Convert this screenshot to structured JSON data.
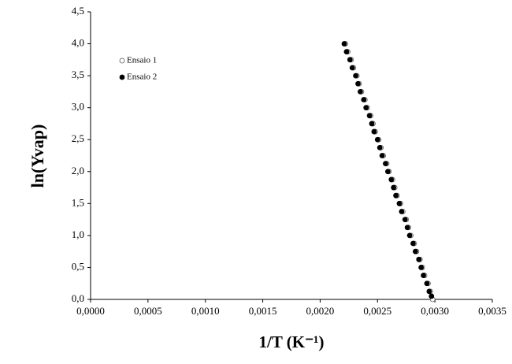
{
  "chart_data": {
    "type": "scatter",
    "xlabel": "1/T (K⁻¹)",
    "ylabel": "ln(Yvap)",
    "xlim": [
      0,
      0.0035
    ],
    "xticks": [
      {
        "value": 0,
        "label": "0,0000"
      },
      {
        "value": 0.0005,
        "label": "0,0005"
      },
      {
        "value": 0.001,
        "label": "0,0010"
      },
      {
        "value": 0.0015,
        "label": "0,0015"
      },
      {
        "value": 0.002,
        "label": "0,0020"
      },
      {
        "value": 0.0025,
        "label": "0,0025"
      },
      {
        "value": 0.003,
        "label": "0,0030"
      },
      {
        "value": 0.0035,
        "label": "0,0035"
      }
    ],
    "ylim": [
      0,
      4.5
    ],
    "yticks": [
      {
        "value": 0,
        "label": "0,0"
      },
      {
        "value": 0.5,
        "label": "0,5"
      },
      {
        "value": 1,
        "label": "1,0"
      },
      {
        "value": 1.5,
        "label": "1,5"
      },
      {
        "value": 2,
        "label": "2,0"
      },
      {
        "value": 2.5,
        "label": "2,5"
      },
      {
        "value": 3,
        "label": "3,0"
      },
      {
        "value": 3.5,
        "label": "3,5"
      },
      {
        "value": 4,
        "label": "4,0"
      },
      {
        "value": 4.5,
        "label": "4,5"
      }
    ],
    "grid": false,
    "legend": "upper left",
    "series": [
      {
        "name": "Ensaio 1",
        "color": "#ffffff",
        "edgecolor": "#555555",
        "x": [
          0.00222,
          0.00224,
          0.00227,
          0.00229,
          0.00232,
          0.00234,
          0.00236,
          0.00239,
          0.00241,
          0.00244,
          0.00246,
          0.00248,
          0.00251,
          0.00253,
          0.00255,
          0.00258,
          0.0026,
          0.00263,
          0.00265,
          0.00267,
          0.0027,
          0.00272,
          0.00275,
          0.00277,
          0.00279,
          0.00282,
          0.00284,
          0.00287,
          0.00289,
          0.00291,
          0.00294,
          0.00296,
          0.00298
        ],
        "values": [
          4,
          3.875,
          3.75,
          3.625,
          3.5,
          3.375,
          3.25,
          3.125,
          3,
          2.875,
          2.75,
          2.625,
          2.5,
          2.375,
          2.25,
          2.125,
          2,
          1.875,
          1.75,
          1.625,
          1.5,
          1.375,
          1.25,
          1.125,
          1,
          0.875,
          0.75,
          0.625,
          0.5,
          0.375,
          0.25,
          0.125,
          0
        ]
      },
      {
        "name": "Ensaio 2",
        "color": "#000000",
        "edgecolor": "#000000",
        "x": [
          0.00221,
          0.00223,
          0.00226,
          0.00228,
          0.00231,
          0.00233,
          0.00235,
          0.00238,
          0.0024,
          0.00243,
          0.00245,
          0.00247,
          0.0025,
          0.00252,
          0.00254,
          0.00257,
          0.00259,
          0.00262,
          0.00264,
          0.00266,
          0.00269,
          0.00271,
          0.00274,
          0.00276,
          0.00278,
          0.00281,
          0.00283,
          0.00286,
          0.00288,
          0.0029,
          0.00293,
          0.00295,
          0.00297
        ],
        "values": [
          4,
          3.875,
          3.75,
          3.625,
          3.5,
          3.375,
          3.25,
          3.125,
          3,
          2.875,
          2.75,
          2.625,
          2.5,
          2.375,
          2.25,
          2.125,
          2,
          1.875,
          1.75,
          1.625,
          1.5,
          1.375,
          1.25,
          1.125,
          1,
          0.875,
          0.75,
          0.625,
          0.5,
          0.375,
          0.25,
          0.125,
          0.05
        ]
      }
    ]
  }
}
